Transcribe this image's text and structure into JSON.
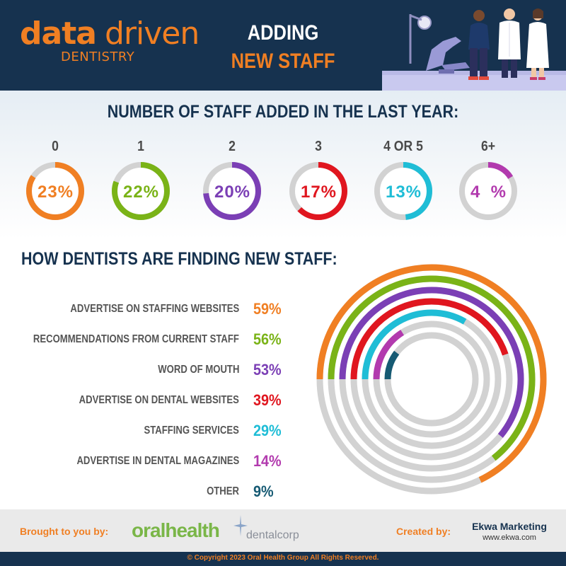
{
  "header": {
    "logo_data": "data",
    "logo_driven": "driven",
    "logo_dentistry": "DENTISTRY",
    "title_line1": "ADDING",
    "title_line2": "NEW STAFF",
    "illustration": "dental-staff-illustration"
  },
  "colors": {
    "navy": "#16324f",
    "orange": "#f07f23",
    "green": "#7ab317",
    "purple": "#7b3fb5",
    "red": "#e0161f",
    "cyan": "#1fbdd6",
    "magenta": "#b23aae",
    "teal": "#165a73",
    "track": "#d2d2d2"
  },
  "chart_data": [
    {
      "type": "donut",
      "title": "NUMBER OF STAFF ADDED IN THE LAST YEAR:",
      "categories": [
        "0",
        "1",
        "2",
        "3",
        "4 OR 5",
        "6+"
      ],
      "values": [
        23,
        22,
        20,
        17,
        13,
        4
      ],
      "value_labels": [
        "23%",
        "22%",
        "20%",
        "17%",
        "13%",
        "4%"
      ],
      "colors": [
        "#f07f23",
        "#7ab317",
        "#7b3fb5",
        "#e0161f",
        "#1fbdd6",
        "#b23aae"
      ],
      "unit": "%"
    },
    {
      "type": "radial-bar",
      "title": "HOW DENTISTS ARE FINDING NEW STAFF:",
      "categories": [
        "ADVERTISE ON STAFFING WEBSITES",
        "RECOMMENDATIONS FROM CURRENT STAFF",
        "WORD OF MOUTH",
        "ADVERTISE ON DENTAL WEBSITES",
        "STAFFING SERVICES",
        "ADVERTISE IN DENTAL MAGAZINES",
        "OTHER"
      ],
      "values": [
        59,
        56,
        53,
        39,
        29,
        14,
        9
      ],
      "value_labels": [
        "59%",
        "56%",
        "53%",
        "39%",
        "29%",
        "14%",
        "9%"
      ],
      "colors": [
        "#f07f23",
        "#7ab317",
        "#7b3fb5",
        "#e0161f",
        "#1fbdd6",
        "#b23aae",
        "#165a73"
      ],
      "unit": "%"
    }
  ],
  "footer": {
    "brought_label": "Brought to you by:",
    "oral_logo": "oralhealth",
    "dentalcorp_logo": "dentalcorp",
    "created_label": "Created by:",
    "ekwa_name": "Ekwa Marketing",
    "ekwa_url": "www.ekwa.com",
    "copyright": "© Copyright 2023 Oral Health Group All Rights Reserved."
  }
}
